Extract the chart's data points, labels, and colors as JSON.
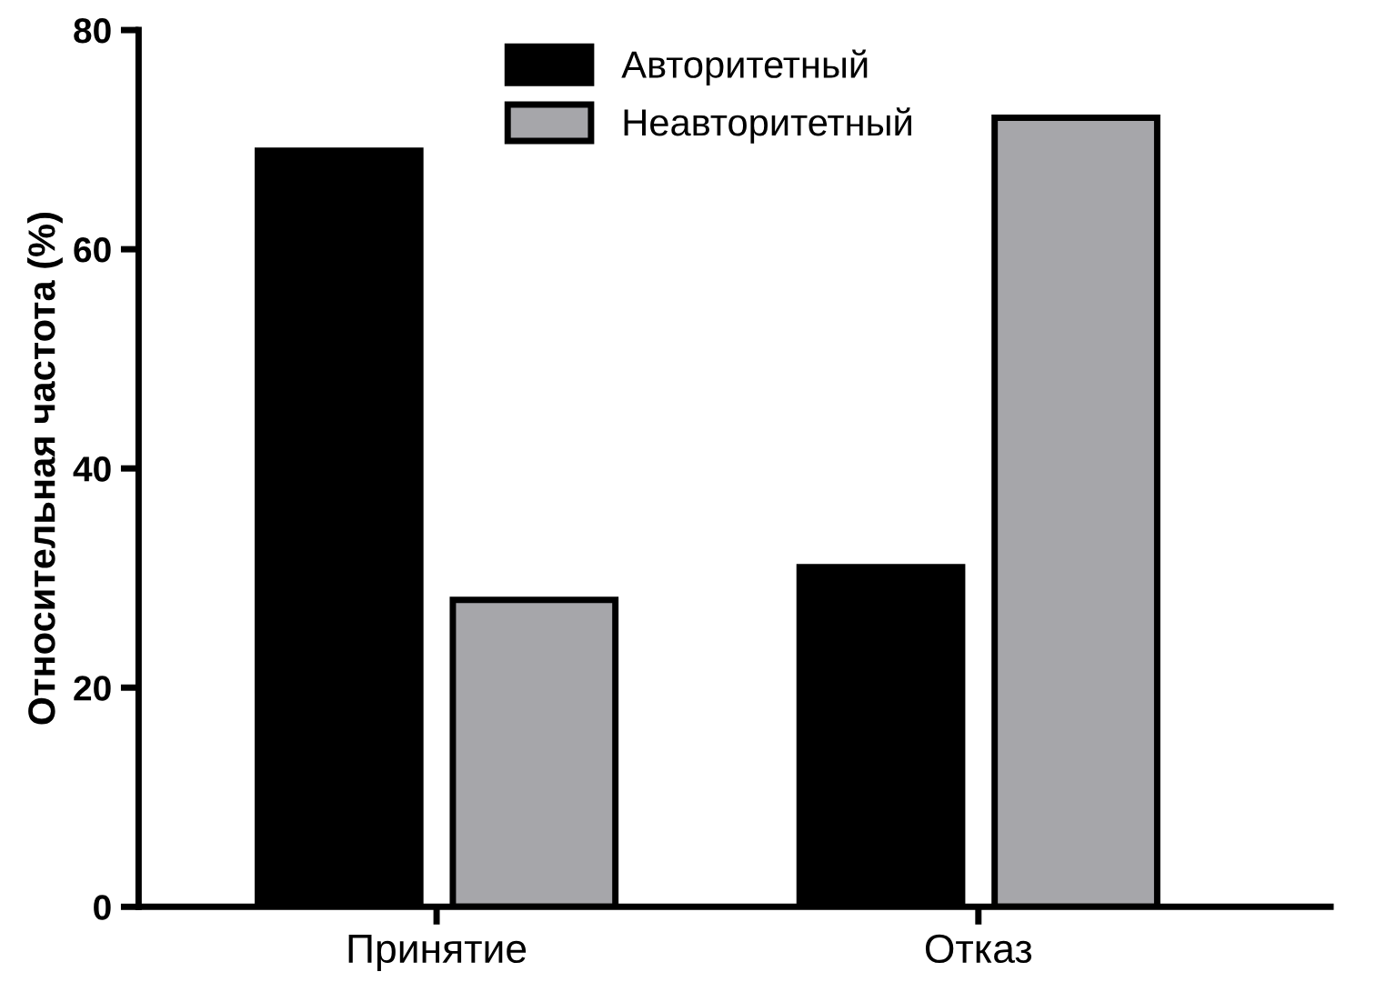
{
  "chart_data": {
    "type": "bar",
    "ylabel": "Относительная частота (%)",
    "categories": [
      "Принятие",
      "Отказ"
    ],
    "series": [
      {
        "name": "Авторитетный",
        "color": "#000000",
        "values": [
          69,
          31
        ]
      },
      {
        "name": "Неавторитетный",
        "color": "#a6a6aa",
        "values": [
          28,
          72
        ]
      }
    ],
    "ylim": [
      0,
      80
    ],
    "yticks": [
      0,
      20,
      40,
      60,
      80
    ],
    "grid": false,
    "legend": "top"
  }
}
